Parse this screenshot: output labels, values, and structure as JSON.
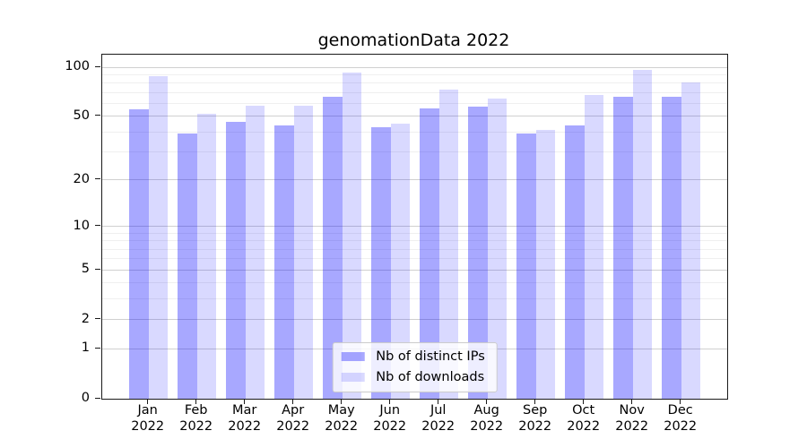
{
  "title": "genomationData 2022",
  "legend": {
    "items": [
      {
        "label": "Nb of distinct IPs",
        "color": "rgba(0,0,255,0.34)"
      },
      {
        "label": "Nb of downloads",
        "color": "rgba(0,0,255,0.15)"
      }
    ],
    "position": "lower center"
  },
  "chart_data": {
    "type": "bar",
    "title": "genomationData 2022",
    "xlabel": "",
    "ylabel": "",
    "scale": "log1p",
    "grid": true,
    "ylim": [
      0,
      118
    ],
    "yticks_major": [
      100,
      50,
      20,
      10,
      5,
      2,
      1,
      0
    ],
    "yticks_minor": [
      3,
      4,
      6,
      7,
      8,
      9,
      30,
      40,
      60,
      70,
      80,
      90
    ],
    "categories": [
      {
        "month": "Jan",
        "year": "2022"
      },
      {
        "month": "Feb",
        "year": "2022"
      },
      {
        "month": "Mar",
        "year": "2022"
      },
      {
        "month": "Apr",
        "year": "2022"
      },
      {
        "month": "May",
        "year": "2022"
      },
      {
        "month": "Jun",
        "year": "2022"
      },
      {
        "month": "Jul",
        "year": "2022"
      },
      {
        "month": "Aug",
        "year": "2022"
      },
      {
        "month": "Sep",
        "year": "2022"
      },
      {
        "month": "Oct",
        "year": "2022"
      },
      {
        "month": "Nov",
        "year": "2022"
      },
      {
        "month": "Dec",
        "year": "2022"
      }
    ],
    "series": [
      {
        "name": "Nb of distinct IPs",
        "color": "rgba(0,0,255,0.34)",
        "values": [
          55,
          39,
          46,
          44,
          66,
          43,
          56,
          57,
          39,
          44,
          66,
          66
        ]
      },
      {
        "name": "Nb of downloads",
        "color": "rgba(0,0,255,0.15)",
        "values": [
          88,
          52,
          58,
          58,
          93,
          45,
          73,
          64,
          41,
          68,
          96,
          81
        ]
      }
    ],
    "colors": {
      "frame": "#1a1a1a",
      "grid_major": "#d0d0d0",
      "grid_minor": "#efefef",
      "legend_border": "#cccccc"
    }
  }
}
